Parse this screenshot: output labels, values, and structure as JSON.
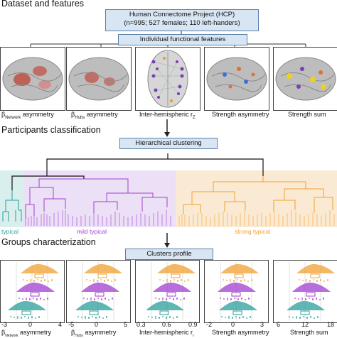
{
  "sections": {
    "dataset": "Dataset and features",
    "classification": "Participants classification",
    "groups": "Groups characterization"
  },
  "hcp_box": {
    "line1": "Human Connectome Project (HCP)",
    "line2": "(n=995; 527 females; 110 left-handers)"
  },
  "features_box": "Individual functional features",
  "hier_box": "Hierarchical clustering",
  "profile_box": "Clusters profile",
  "features": [
    {
      "beta": "β",
      "sub": "Network",
      "rest": " asymmetry"
    },
    {
      "beta": "β",
      "sub": "Hubs",
      "rest": " asymmetry"
    },
    {
      "plain": "Inter-hemispheric r",
      "sub": "Z"
    },
    {
      "plain": "Strength asymmetry"
    },
    {
      "plain": "Strength sum"
    }
  ],
  "clusters": {
    "typical": "typical",
    "mild": "mild typical",
    "strong": "strong typical"
  },
  "colors": {
    "typical": "#2a9d9a",
    "mild": "#a23fcf",
    "strong": "#f0a030",
    "box_fill": "#d8e6f3",
    "box_border": "#5a7fa8"
  },
  "profile_axes": [
    {
      "min": "-3",
      "mid": "0",
      "max": "4",
      "label_beta": "β",
      "label_sub": "Network",
      "label_rest": " asymmetry"
    },
    {
      "min": "-5",
      "mid": "0",
      "max": "5",
      "label_beta": "β",
      "label_sub": "Hubs",
      "label_rest": " asymmetry"
    },
    {
      "min": "0.3",
      "mid": "0.6",
      "max": "0.9",
      "label_plain": "Inter-hemispheric r",
      "label_sub": "r"
    },
    {
      "min": "-2",
      "mid": "0",
      "max": "3",
      "label_plain": "Strength asymmetry"
    },
    {
      "min": "6",
      "mid": "12",
      "max": "18",
      "label_plain": "Strength sum"
    }
  ]
}
